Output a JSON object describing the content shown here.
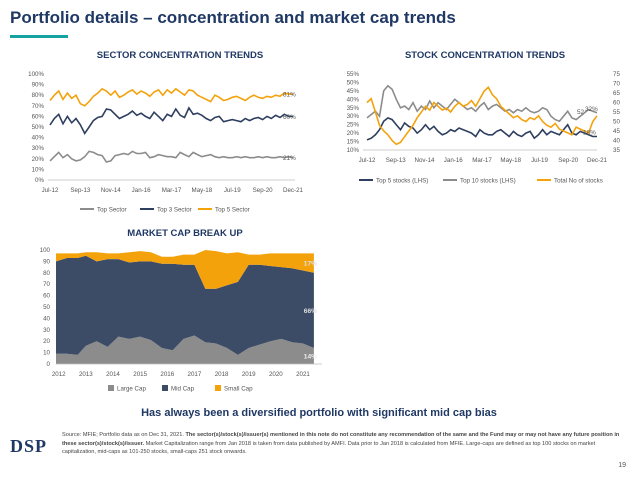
{
  "header": {
    "title": "Portfolio details – concentration and market cap trends"
  },
  "colors": {
    "title": "#1f3864",
    "accent": "#17a2a2",
    "top_sector": "#8c8c8c",
    "top3": "#2e3f5f",
    "top5": "#f4a20c",
    "top5_stocks": "#2e3f5f",
    "top10_stocks": "#8c8c8c",
    "total_stocks": "#f4a20c",
    "large_cap": "#8c8c8c",
    "mid_cap": "#3d4c66",
    "small_cap": "#f4a20c"
  },
  "chart_data": [
    {
      "type": "line",
      "title": "SECTOR CONCENTRATION TRENDS",
      "x_ticks": [
        "Jul-12",
        "Sep-13",
        "Nov-14",
        "Jan-16",
        "Mar-17",
        "May-18",
        "Jul-19",
        "Sep-20",
        "Dec-21"
      ],
      "y_ticks": [
        "0%",
        "10%",
        "20%",
        "30%",
        "40%",
        "50%",
        "60%",
        "70%",
        "80%",
        "90%",
        "100%"
      ],
      "ylim": [
        0,
        100
      ],
      "legend": "bottom",
      "series": [
        {
          "name": "Top Sector",
          "values": [
            18,
            22,
            26,
            21,
            24,
            20,
            18,
            19,
            22,
            27,
            26,
            24,
            23,
            17,
            18,
            23,
            24,
            25,
            24,
            27,
            25,
            25,
            26,
            21,
            22,
            24,
            23,
            22,
            22,
            21,
            26,
            24,
            22,
            26,
            24,
            22,
            23,
            24,
            22,
            21,
            22,
            21,
            21,
            22,
            21,
            22,
            21,
            21,
            22,
            21,
            22,
            21,
            21,
            22,
            21,
            22,
            21
          ]
        },
        {
          "name": "Top 3 Sector",
          "values": [
            52,
            58,
            62,
            53,
            60,
            54,
            58,
            52,
            44,
            50,
            56,
            59,
            60,
            67,
            66,
            62,
            58,
            60,
            62,
            65,
            61,
            63,
            60,
            58,
            64,
            60,
            56,
            62,
            60,
            67,
            61,
            59,
            68,
            62,
            63,
            61,
            58,
            56,
            59,
            60,
            55,
            56,
            57,
            56,
            55,
            58,
            56,
            58,
            59,
            57,
            60,
            58,
            61,
            59,
            62,
            60,
            60
          ]
        },
        {
          "name": "Top 5 Sector",
          "values": [
            75,
            80,
            84,
            76,
            82,
            77,
            80,
            72,
            70,
            74,
            79,
            82,
            86,
            84,
            80,
            84,
            78,
            80,
            83,
            85,
            81,
            84,
            82,
            79,
            83,
            85,
            80,
            85,
            82,
            86,
            83,
            80,
            85,
            84,
            80,
            78,
            76,
            74,
            80,
            78,
            75,
            76,
            78,
            79,
            77,
            75,
            78,
            80,
            78,
            77,
            79,
            78,
            80,
            79,
            82,
            81,
            81
          ]
        }
      ],
      "end_labels": [
        "81%",
        "60%",
        "21%"
      ]
    },
    {
      "type": "line",
      "title": "STOCK CONCENTRATION TRENDS",
      "x_ticks": [
        "Jul-12",
        "Sep-13",
        "Nov-14",
        "Jan-16",
        "Mar-17",
        "May-18",
        "Jul-19",
        "Sep-20",
        "Dec-21"
      ],
      "y_left_ticks": [
        "10%",
        "15%",
        "20%",
        "25%",
        "30%",
        "35%",
        "40%",
        "45%",
        "50%",
        "55%"
      ],
      "y_right_ticks": [
        "35",
        "40",
        "45",
        "50",
        "55",
        "60",
        "65",
        "70",
        "75"
      ],
      "ylim_left": [
        10,
        55
      ],
      "ylim_right": [
        35,
        75
      ],
      "legend": "bottom",
      "series": [
        {
          "name": "Top 5 stocks (LHS)",
          "axis": "left",
          "values": [
            16,
            17,
            19,
            22,
            27,
            29,
            28,
            25,
            22,
            26,
            24,
            23,
            20,
            22,
            25,
            22,
            24,
            21,
            19,
            20,
            22,
            21,
            23,
            22,
            21,
            20,
            18,
            22,
            20,
            19,
            19,
            21,
            22,
            20,
            18,
            21,
            19,
            18,
            20,
            21,
            17,
            19,
            22,
            19,
            21,
            20,
            19,
            22,
            25,
            20,
            19,
            21,
            20,
            19,
            18,
            18
          ]
        },
        {
          "name": "Top 10 stocks (LHS)",
          "axis": "left",
          "values": [
            29,
            31,
            33,
            30,
            45,
            48,
            46,
            40,
            35,
            36,
            34,
            38,
            33,
            36,
            34,
            39,
            35,
            38,
            36,
            34,
            37,
            40,
            38,
            36,
            34,
            35,
            33,
            36,
            38,
            34,
            36,
            37,
            35,
            33,
            34,
            32,
            34,
            33,
            35,
            33,
            32,
            33,
            35,
            34,
            30,
            28,
            27,
            30,
            33,
            29,
            28,
            30,
            32,
            34,
            33,
            32
          ]
        },
        {
          "name": "Total No of stocks",
          "axis": "right",
          "values": [
            60,
            62,
            55,
            48,
            45,
            43,
            40,
            38,
            39,
            42,
            45,
            48,
            52,
            55,
            58,
            56,
            60,
            58,
            56,
            57,
            55,
            58,
            60,
            58,
            59,
            61,
            58,
            62,
            66,
            68,
            64,
            62,
            58,
            56,
            54,
            52,
            53,
            51,
            50,
            52,
            51,
            53,
            50,
            48,
            47,
            49,
            46,
            45,
            44,
            43,
            47,
            46,
            45,
            44,
            50,
            53
          ]
        }
      ],
      "end_labels": [
        "32%",
        "52",
        "18%"
      ]
    },
    {
      "type": "area",
      "stacked": true,
      "title": "MARKET CAP BREAK UP",
      "x_ticks": [
        "2012",
        "2013",
        "2014",
        "2015",
        "2016",
        "2017",
        "2018",
        "2019",
        "2020",
        "2021"
      ],
      "y_ticks": [
        "0",
        "10",
        "20",
        "30",
        "40",
        "50",
        "60",
        "70",
        "80",
        "90",
        "100"
      ],
      "ylim": [
        0,
        100
      ],
      "legend": "bottom",
      "x": [
        2011.9,
        2012.3,
        2012.7,
        2013.0,
        2013.4,
        2013.8,
        2014.2,
        2014.6,
        2015.0,
        2015.4,
        2015.8,
        2016.2,
        2016.6,
        2017.0,
        2017.4,
        2017.8,
        2018.2,
        2018.6,
        2019.0,
        2019.4,
        2019.8,
        2020.2,
        2020.6,
        2021.0,
        2021.4
      ],
      "series": [
        {
          "name": "Large Cap",
          "values": [
            9,
            9,
            8,
            16,
            20,
            15,
            24,
            22,
            24,
            21,
            14,
            12,
            22,
            25,
            19,
            18,
            14,
            8,
            14,
            17,
            20,
            22,
            19,
            18,
            14
          ]
        },
        {
          "name": "Mid Cap",
          "values": [
            81,
            84,
            85,
            79,
            70,
            77,
            68,
            67,
            66,
            69,
            74,
            76,
            65,
            62,
            47,
            48,
            55,
            64,
            73,
            70,
            66,
            63,
            65,
            64,
            66
          ]
        },
        {
          "name": "Small Cap",
          "values": [
            7,
            4,
            4,
            3,
            8,
            5,
            5,
            9,
            9,
            8,
            6,
            6,
            9,
            9,
            34,
            33,
            28,
            26,
            9,
            9,
            11,
            12,
            13,
            15,
            17
          ]
        }
      ],
      "end_labels": [
        "17%",
        "66%",
        "14%"
      ]
    }
  ],
  "tagline": "Has always been a diversified portfolio with significant mid cap bias",
  "logo": "DSP",
  "source": {
    "prefix": "Source: MFIE; Portfolio data as on Dec 31, 2021. ",
    "bold": "The sector(s)/stock(s)/issuer(s) mentioned in this note do not constitute any recommendation of the same and the Fund may or may not have any future position in these sector(s)/stock(s)/issuer.",
    "rest": " Market Capitalization range from Jan 2018 is taken from data published by AMFI. Data prior to Jan 2018 is calculated from MFIE. Large-caps are defined as top 100 stocks on market capitalization, mid-caps as 101-250 stocks, small-caps 251 stock onwards."
  },
  "page_number": "19"
}
